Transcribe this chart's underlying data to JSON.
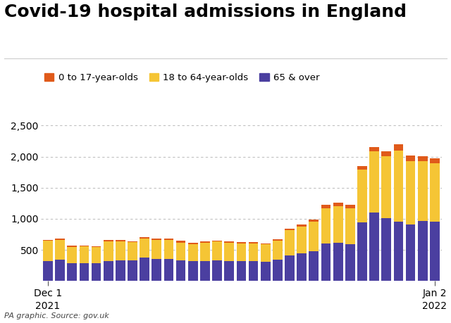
{
  "title": "Covid-19 hospital admissions in England",
  "subtitle": "PA graphic. Source: gov.uk",
  "legend_labels": [
    "0 to 17-year-olds",
    "18 to 64-year-olds",
    "65 & over"
  ],
  "colors": [
    "#e05a1a",
    "#f5c535",
    "#4b3fa0"
  ],
  "x_tick_labels": [
    "Dec 1\n2021",
    "Jan 2\n2022"
  ],
  "x_tick_positions": [
    0,
    32
  ],
  "ylim": [
    0,
    2700
  ],
  "yticks": [
    500,
    1000,
    1500,
    2000,
    2500
  ],
  "ytick_labels": [
    "500",
    "1,000",
    "1,500",
    "2,000",
    "2,500"
  ],
  "bar_width": 0.8,
  "age_0_17": [
    18,
    18,
    15,
    12,
    12,
    18,
    18,
    18,
    22,
    22,
    22,
    25,
    18,
    18,
    18,
    18,
    18,
    18,
    18,
    22,
    28,
    32,
    38,
    50,
    55,
    50,
    55,
    70,
    80,
    95,
    85,
    80,
    80
  ],
  "age_18_64": [
    320,
    325,
    265,
    265,
    260,
    315,
    310,
    295,
    310,
    310,
    305,
    285,
    280,
    290,
    300,
    290,
    285,
    285,
    278,
    305,
    400,
    430,
    475,
    570,
    585,
    575,
    850,
    980,
    1000,
    1150,
    1020,
    960,
    940
  ],
  "age_65_over": [
    325,
    340,
    285,
    290,
    285,
    325,
    328,
    328,
    375,
    355,
    350,
    335,
    315,
    325,
    335,
    325,
    318,
    318,
    312,
    342,
    415,
    445,
    478,
    600,
    615,
    595,
    940,
    1100,
    1010,
    950,
    910,
    965,
    950
  ],
  "background_color": "#ffffff",
  "grid_color": "#bbbbbb",
  "title_fontsize": 18,
  "label_fontsize": 9.5,
  "tick_fontsize": 10
}
